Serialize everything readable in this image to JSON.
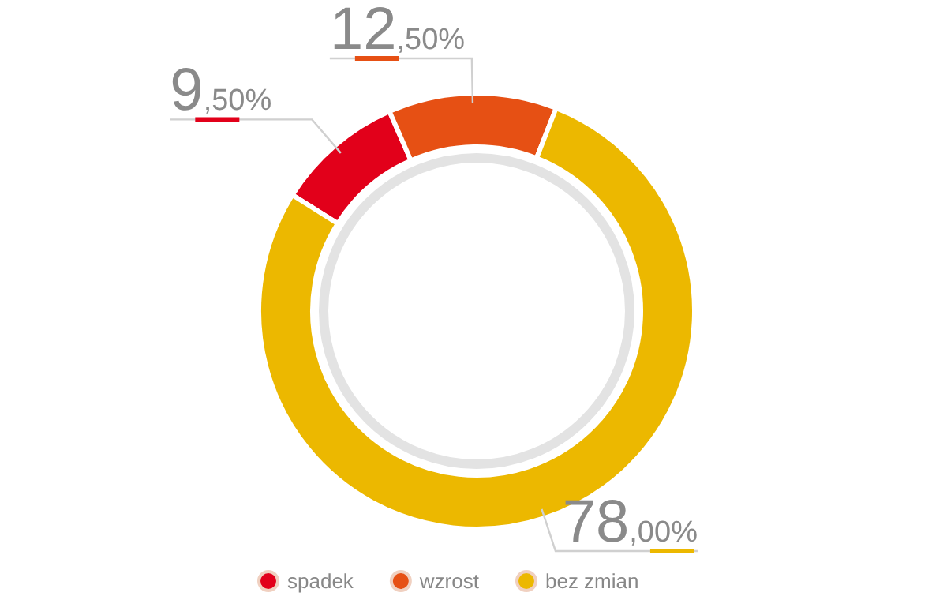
{
  "chart_data": {
    "type": "donut",
    "categories": [
      "spadek",
      "wzrost",
      "bez zmian"
    ],
    "values": [
      9.5,
      12.5,
      78
    ],
    "colors": [
      "#e2001a",
      "#e65014",
      "#ecb800"
    ],
    "value_labels": [
      "9,50%",
      "12,50%",
      "78,00%"
    ],
    "legend": "bottom"
  }
}
